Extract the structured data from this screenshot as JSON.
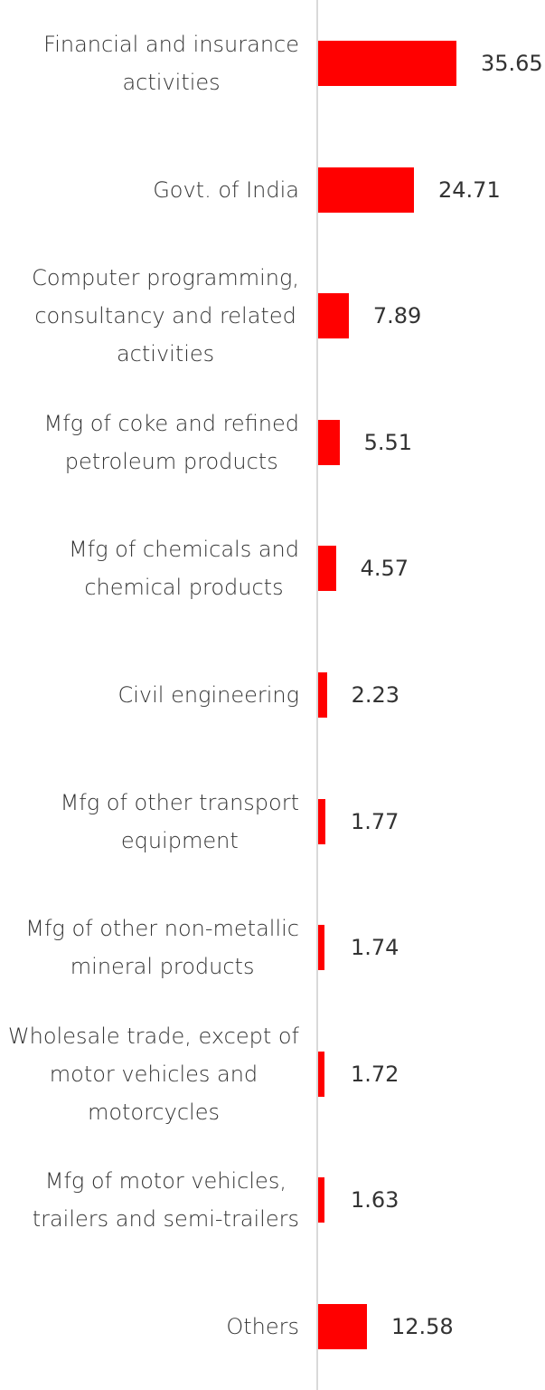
{
  "chart_data": {
    "type": "bar",
    "orientation": "horizontal",
    "title": "",
    "xlabel": "",
    "ylabel": "",
    "bar_color": "#ff0000",
    "categories": [
      "Financial and insurance\nactivities",
      "Govt. of India",
      "Computer programming,\nconsultancy and related\nactivities",
      "Mfg of coke and refined\npetroleum products",
      "Mfg of chemicals and\nchemical products",
      "Civil engineering",
      "Mfg of other transport\nequipment",
      "Mfg of other non-metallic\nmineral products",
      "Wholesale trade, except of\nmotor vehicles and\nmotorcycles",
      "Mfg of motor vehicles,\ntrailers and semi-trailers",
      "Others"
    ],
    "values": [
      35.65,
      24.71,
      7.89,
      5.51,
      4.57,
      2.23,
      1.77,
      1.74,
      1.72,
      1.63,
      12.58
    ],
    "value_labels": [
      "35.65",
      "24.71",
      "7.89",
      "5.51",
      "4.57",
      "2.23",
      "1.77",
      "1.74",
      "1.72",
      "1.63",
      "12.58"
    ],
    "xlim": [
      0,
      58
    ],
    "grid": false,
    "legend": "none"
  }
}
